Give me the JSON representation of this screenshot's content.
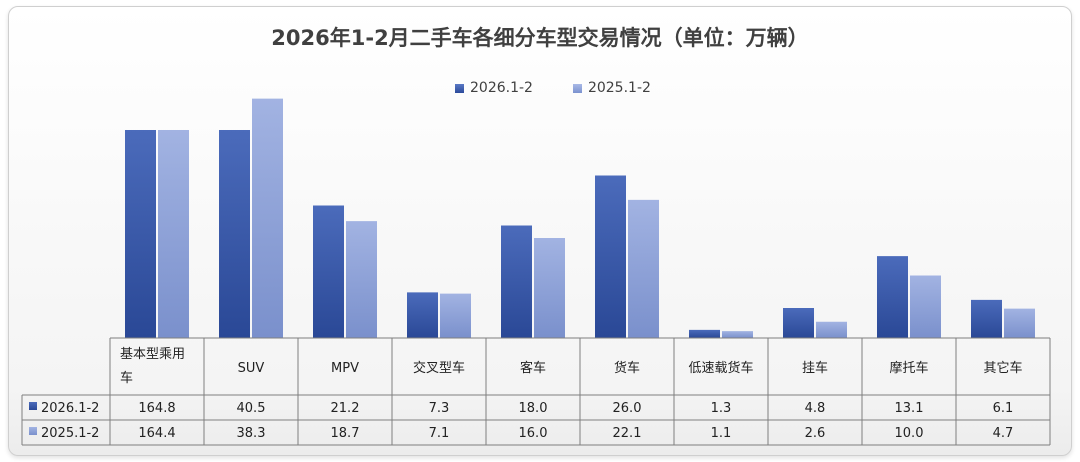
{
  "chart_data": {
    "type": "bar",
    "title": "2026年1-2月二手车各细分车型交易情况（单位：万辆）",
    "categories": [
      "基本型乘用车",
      "SUV",
      "MPV",
      "交叉型车",
      "客车",
      "货车",
      "低速载货车",
      "挂车",
      "摩托车",
      "其它车"
    ],
    "series": [
      {
        "name": "2026.1-2",
        "values": [
          164.8,
          40.5,
          21.2,
          7.3,
          18.0,
          26.0,
          1.3,
          4.8,
          13.1,
          6.1
        ]
      },
      {
        "name": "2025.1-2",
        "values": [
          164.4,
          38.3,
          18.7,
          7.1,
          16.0,
          22.1,
          1.1,
          2.6,
          10.0,
          4.7
        ]
      }
    ],
    "value_labels": [
      [
        "164.8",
        "40.5",
        "21.2",
        "7.3",
        "18.0",
        "26.0",
        "1.3",
        "4.8",
        "13.1",
        "6.1"
      ],
      [
        "164.4",
        "38.3",
        "18.7",
        "7.1",
        "16.0",
        "22.1",
        "1.1",
        "2.6",
        "10.0",
        "4.7"
      ]
    ],
    "axis_break_note": "first category bars shown truncated (broken axis)",
    "colors": [
      "#3a5bab",
      "#8ea3d8"
    ],
    "legend_position": "top-center",
    "data_table": true
  }
}
